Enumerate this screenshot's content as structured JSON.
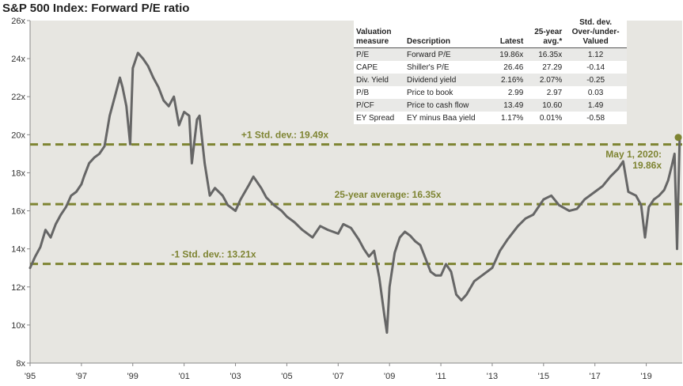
{
  "chart_data": {
    "type": "line",
    "title": "S&P 500 Index: Forward P/E ratio",
    "xlim": [
      1995,
      2020.4
    ],
    "ylim": [
      8,
      26
    ],
    "yticks": [
      8,
      10,
      12,
      14,
      16,
      18,
      20,
      22,
      24,
      26
    ],
    "ytick_labels": [
      "8x",
      "10x",
      "12x",
      "14x",
      "16x",
      "18x",
      "20x",
      "22x",
      "24x",
      "26x"
    ],
    "xticks": [
      1995,
      1997,
      1999,
      2001,
      2003,
      2005,
      2007,
      2009,
      2011,
      2013,
      2015,
      2017,
      2019
    ],
    "xtick_labels": [
      "'95",
      "'97",
      "'99",
      "'01",
      "'03",
      "'05",
      "'07",
      "'09",
      "'11",
      "'13",
      "'15",
      "'17",
      "'19"
    ],
    "line_color": "#666666",
    "ref_color": "#7e8432",
    "series": [
      {
        "x": [
          1995.0,
          1995.2,
          1995.4,
          1995.6,
          1995.8,
          1996.0,
          1996.2,
          1996.4,
          1996.6,
          1996.8,
          1997.0,
          1997.1,
          1997.3,
          1997.5,
          1997.7,
          1997.9,
          1998.1,
          1998.3,
          1998.5,
          1998.6,
          1998.75,
          1998.9,
          1999.0,
          1999.2,
          1999.4,
          1999.6,
          1999.8,
          2000.0,
          2000.2,
          2000.4,
          2000.6,
          2000.8,
          2001.0,
          2001.2,
          2001.3,
          2001.5,
          2001.6,
          2001.8,
          2002.0,
          2002.2,
          2002.5,
          2002.7,
          2003.0,
          2003.2,
          2003.5,
          2003.7,
          2004.0,
          2004.2,
          2004.5,
          2004.8,
          2005.0,
          2005.3,
          2005.6,
          2006.0,
          2006.3,
          2006.6,
          2007.0,
          2007.2,
          2007.5,
          2007.8,
          2008.0,
          2008.2,
          2008.4,
          2008.6,
          2008.8,
          2008.9,
          2009.0,
          2009.2,
          2009.4,
          2009.6,
          2009.8,
          2010.0,
          2010.2,
          2010.4,
          2010.6,
          2010.8,
          2011.0,
          2011.2,
          2011.4,
          2011.6,
          2011.8,
          2012.0,
          2012.3,
          2012.6,
          2013.0,
          2013.3,
          2013.6,
          2014.0,
          2014.3,
          2014.6,
          2015.0,
          2015.3,
          2015.6,
          2016.0,
          2016.3,
          2016.6,
          2017.0,
          2017.3,
          2017.6,
          2017.9,
          2018.1,
          2018.3,
          2018.6,
          2018.8,
          2018.95,
          2019.1,
          2019.3,
          2019.5,
          2019.7,
          2019.85,
          2020.0,
          2020.1,
          2020.2,
          2020.3
        ],
        "y": [
          13.0,
          13.6,
          14.1,
          15.0,
          14.6,
          15.3,
          15.8,
          16.2,
          16.8,
          17.0,
          17.4,
          17.8,
          18.5,
          18.8,
          19.0,
          19.4,
          21.0,
          22.0,
          23.0,
          22.5,
          21.5,
          19.5,
          23.5,
          24.3,
          24.0,
          23.6,
          23.0,
          22.5,
          21.8,
          21.5,
          22.0,
          20.5,
          21.2,
          21.0,
          18.5,
          20.8,
          21.0,
          18.5,
          16.8,
          17.2,
          16.8,
          16.3,
          16.0,
          16.6,
          17.3,
          17.8,
          17.2,
          16.7,
          16.3,
          16.0,
          15.7,
          15.4,
          15.0,
          14.6,
          15.2,
          15.0,
          14.8,
          15.3,
          15.1,
          14.5,
          14.0,
          13.6,
          13.9,
          12.5,
          10.5,
          9.6,
          12.0,
          13.8,
          14.6,
          14.9,
          14.7,
          14.4,
          14.2,
          13.5,
          12.8,
          12.6,
          12.6,
          13.2,
          12.8,
          11.6,
          11.3,
          11.6,
          12.3,
          12.6,
          13.0,
          13.9,
          14.5,
          15.2,
          15.6,
          15.8,
          16.6,
          16.8,
          16.3,
          16.0,
          16.1,
          16.6,
          17.0,
          17.3,
          17.8,
          18.2,
          18.6,
          17.0,
          16.8,
          16.3,
          14.6,
          16.2,
          16.6,
          16.8,
          17.1,
          17.6,
          18.4,
          19.0,
          14.0,
          19.86
        ]
      }
    ],
    "reference_lines": [
      {
        "value": 19.49,
        "label": "+1 Std. dev.: 19.49x"
      },
      {
        "value": 16.35,
        "label": "25-year average: 16.35x"
      },
      {
        "value": 13.21,
        "label": "-1 Std. dev.: 13.21x"
      }
    ],
    "annotations": [
      {
        "x": 2020.3,
        "y": 19.86,
        "line1": "May 1, 2020:",
        "line2": "19.86x"
      }
    ],
    "table": {
      "headers": [
        [
          "Valuation",
          "measure"
        ],
        [
          "Description"
        ],
        [
          "Latest"
        ],
        [
          "25-year",
          "avg.*"
        ],
        [
          "Std. dev.",
          "Over-/under-",
          "Valued"
        ]
      ],
      "rows": [
        [
          "P/E",
          "Forward P/E",
          "19.86x",
          "16.35x",
          "1.12"
        ],
        [
          "CAPE",
          "Shiller's P/E",
          "26.46",
          "27.29",
          "-0.14"
        ],
        [
          "Div. Yield",
          "Dividend yield",
          "2.16%",
          "2.07%",
          "-0.25"
        ],
        [
          "P/B",
          "Price to book",
          "2.99",
          "2.97",
          "0.03"
        ],
        [
          "P/CF",
          "Price to cash flow",
          "13.49",
          "10.60",
          "1.49"
        ],
        [
          "EY Spread",
          "EY minus Baa yield",
          "1.17%",
          "0.01%",
          "-0.58"
        ]
      ]
    }
  }
}
